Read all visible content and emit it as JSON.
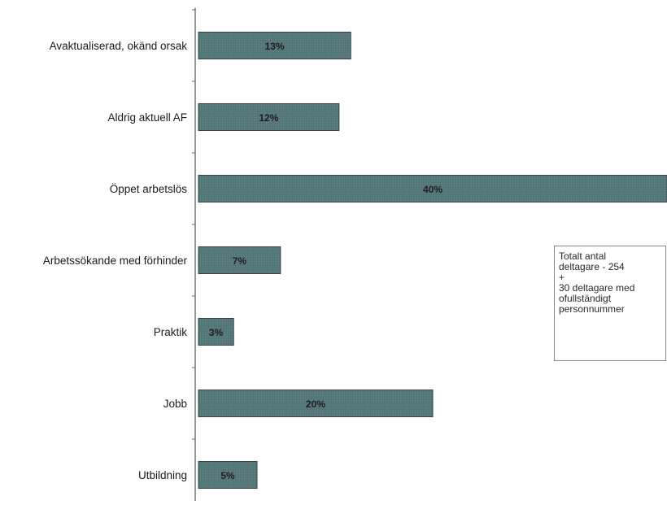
{
  "chart_data": {
    "type": "bar",
    "orientation": "horizontal",
    "categories": [
      "Avaktualiserad, okänd orsak",
      "Aldrig aktuell AF",
      "Öppet arbetslös",
      "Arbetssökande med förhinder",
      "Praktik",
      "Jobb",
      "Utbildning"
    ],
    "values": [
      13,
      12,
      40,
      7,
      3,
      20,
      5
    ],
    "data_labels": [
      "13%",
      "12%",
      "40%",
      "7%",
      "3%",
      "20%",
      "5%"
    ],
    "unit": "%",
    "grid": false,
    "legend": "none",
    "bar_color": "#4f7171",
    "annotation": "Totalt antal\ndeltagare - 254\n+\n30 deltagare med\nofullständigt\npersonnummer"
  }
}
